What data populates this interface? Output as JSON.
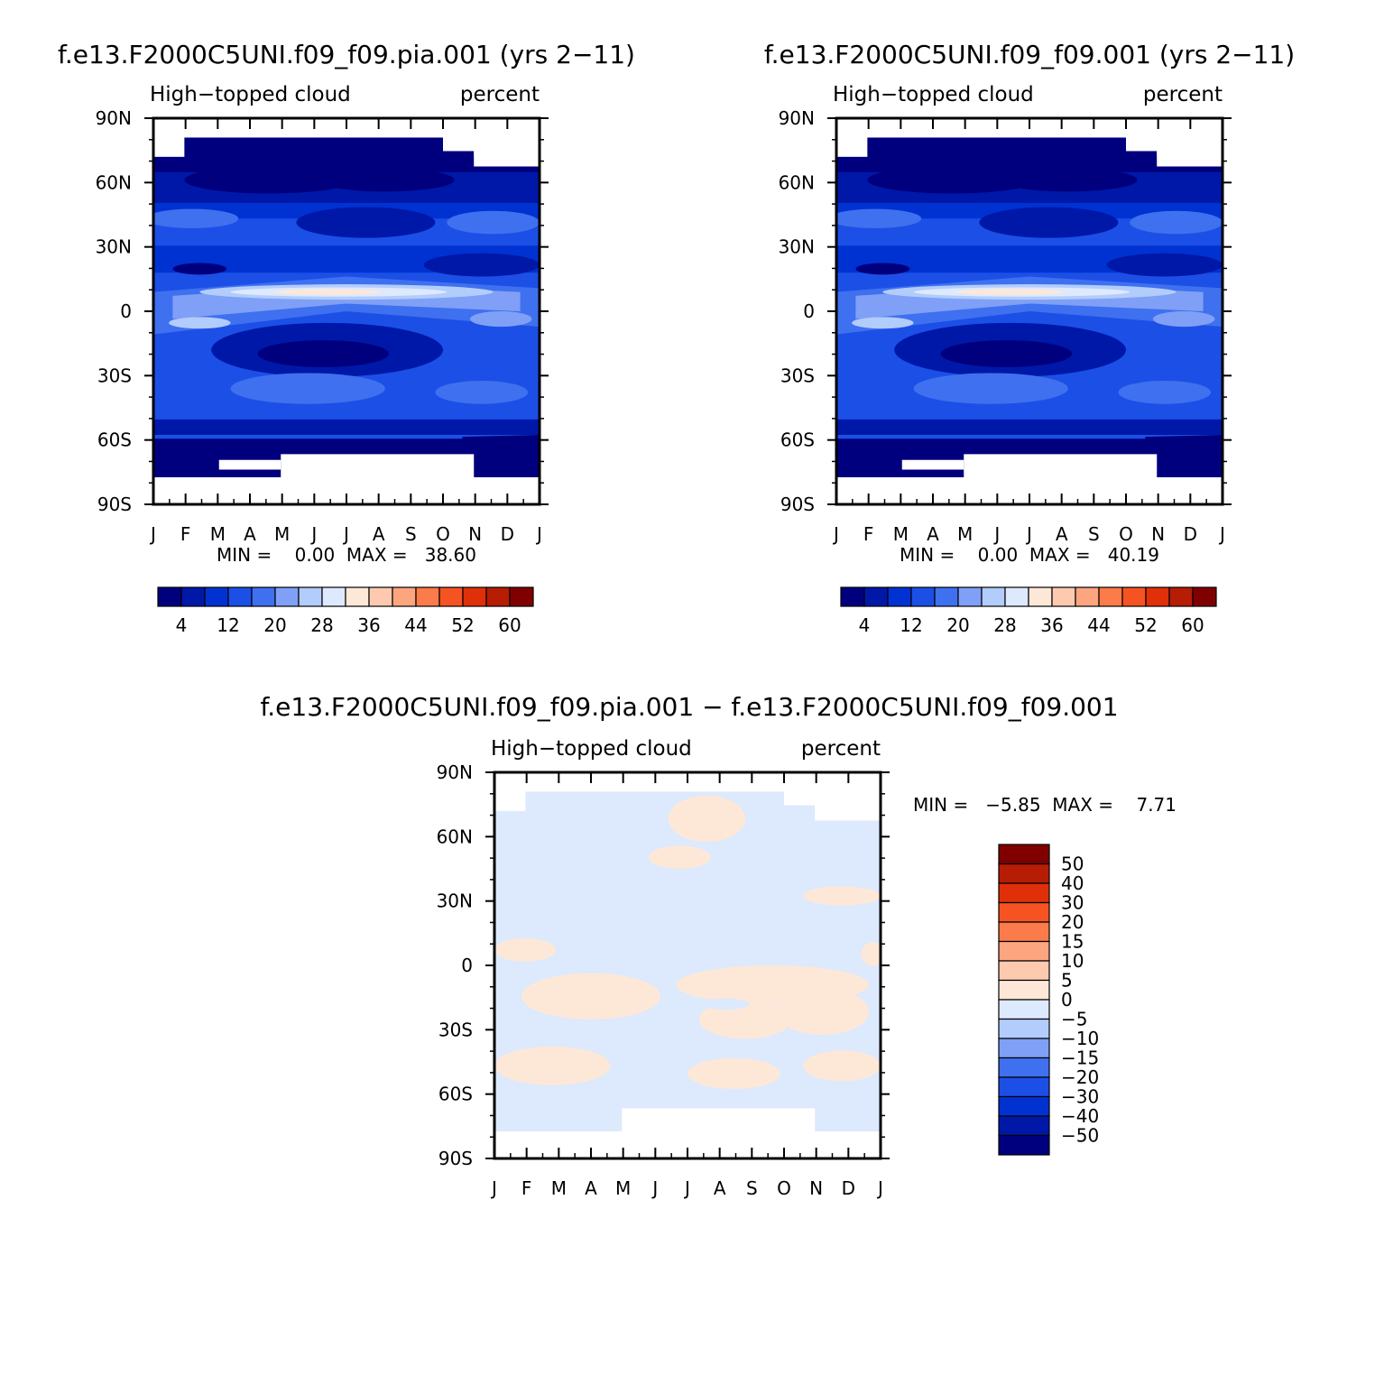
{
  "panels": {
    "top_left": {
      "title": "f.e13.F2000C5UNI.f09_f09.pia.001 (yrs 2−11)",
      "left_string": "High−topped cloud",
      "right_string": "percent",
      "stats": "MIN =    0.00  MAX =   38.60"
    },
    "top_right": {
      "title": "f.e13.F2000C5UNI.f09_f09.001 (yrs 2−11)",
      "left_string": "High−topped cloud",
      "right_string": "percent",
      "stats": "MIN =    0.00  MAX =   40.19"
    },
    "bottom": {
      "title": "f.e13.F2000C5UNI.f09_f09.pia.001  −  f.e13.F2000C5UNI.f09_f09.001",
      "left_string": "High−topped cloud",
      "right_string": "percent",
      "stats": "MIN =   −5.85  MAX =    7.71"
    }
  },
  "axes": {
    "x_ticks": [
      "J",
      "F",
      "M",
      "A",
      "M",
      "J",
      "J",
      "A",
      "S",
      "O",
      "N",
      "D",
      "J"
    ],
    "y_ticks": [
      "90N",
      "60N",
      "30N",
      "0",
      "30S",
      "60S",
      "90S"
    ]
  },
  "colorbar_fields": {
    "colors": [
      "#00007f",
      "#0018a8",
      "#0032d2",
      "#1c4fe6",
      "#3f70ef",
      "#7fa0f6",
      "#b2ccfc",
      "#dde9fc",
      "#fde8d8",
      "#fdcab0",
      "#fca57f",
      "#fb7b4a",
      "#f55322",
      "#e0300a",
      "#b71c04",
      "#800000"
    ],
    "labels": [
      "4",
      "12",
      "20",
      "28",
      "36",
      "44",
      "52",
      "60"
    ]
  },
  "colorbar_diff": {
    "colors": [
      "#00007f",
      "#0018a8",
      "#0032d2",
      "#1c4fe6",
      "#3f70ef",
      "#7fa0f6",
      "#b2ccfc",
      "#dde9fc",
      "#fde8d8",
      "#fdcab0",
      "#fca57f",
      "#fb7b4a",
      "#f55322",
      "#e0300a",
      "#b71c04",
      "#800000"
    ],
    "labels": [
      "50",
      "40",
      "30",
      "20",
      "15",
      "10",
      "5",
      "0",
      "−5",
      "−10",
      "−15",
      "−20",
      "−30",
      "−40",
      "−50"
    ]
  },
  "chart_data": [
    {
      "type": "heatmap",
      "title": "f.e13.F2000C5UNI.f09_f09.pia.001 (yrs 2−11)",
      "variable": "High−topped cloud",
      "units": "percent",
      "x": [
        "J",
        "F",
        "M",
        "A",
        "M",
        "J",
        "J",
        "A",
        "S",
        "O",
        "N",
        "D",
        "J"
      ],
      "y": [
        "90N",
        "60N",
        "30N",
        "0",
        "30S",
        "60S",
        "90S"
      ],
      "min": 0.0,
      "max": 38.6,
      "levels": [
        4,
        8,
        12,
        16,
        20,
        24,
        28,
        32,
        36,
        40,
        44,
        48,
        52,
        56,
        60
      ],
      "palette": "blue-white-red"
    },
    {
      "type": "heatmap",
      "title": "f.e13.F2000C5UNI.f09_f09.001 (yrs 2−11)",
      "variable": "High−topped cloud",
      "units": "percent",
      "x": [
        "J",
        "F",
        "M",
        "A",
        "M",
        "J",
        "J",
        "A",
        "S",
        "O",
        "N",
        "D",
        "J"
      ],
      "y": [
        "90N",
        "60N",
        "30N",
        "0",
        "30S",
        "60S",
        "90S"
      ],
      "min": 0.0,
      "max": 40.19,
      "levels": [
        4,
        8,
        12,
        16,
        20,
        24,
        28,
        32,
        36,
        40,
        44,
        48,
        52,
        56,
        60
      ],
      "palette": "blue-white-red"
    },
    {
      "type": "heatmap",
      "title": "f.e13.F2000C5UNI.f09_f09.pia.001  −  f.e13.F2000C5UNI.f09_f09.001",
      "variable": "High−topped cloud",
      "units": "percent",
      "x": [
        "J",
        "F",
        "M",
        "A",
        "M",
        "J",
        "J",
        "A",
        "S",
        "O",
        "N",
        "D",
        "J"
      ],
      "y": [
        "90N",
        "60N",
        "30N",
        "0",
        "30S",
        "60S",
        "90S"
      ],
      "min": -5.85,
      "max": 7.71,
      "levels": [
        -50,
        -40,
        -30,
        -20,
        -15,
        -10,
        -5,
        0,
        5,
        10,
        15,
        20,
        30,
        40,
        50
      ],
      "palette": "blue-white-red"
    }
  ]
}
